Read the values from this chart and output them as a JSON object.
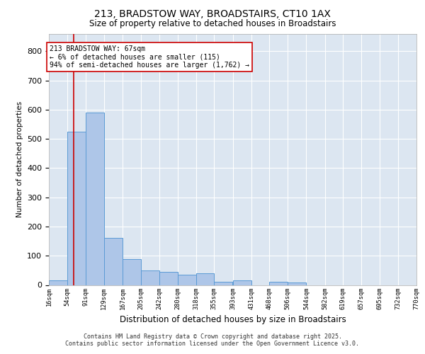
{
  "title_line1": "213, BRADSTOW WAY, BROADSTAIRS, CT10 1AX",
  "title_line2": "Size of property relative to detached houses in Broadstairs",
  "xlabel": "Distribution of detached houses by size in Broadstairs",
  "ylabel": "Number of detached properties",
  "footer_line1": "Contains HM Land Registry data © Crown copyright and database right 2025.",
  "footer_line2": "Contains public sector information licensed under the Open Government Licence v3.0.",
  "annotation_line1": "213 BRADSTOW WAY: 67sqm",
  "annotation_line2": "← 6% of detached houses are smaller (115)",
  "annotation_line3": "94% of semi-detached houses are larger (1,762) →",
  "bar_color": "#aec6e8",
  "bar_edge_color": "#5b9bd5",
  "fig_background": "#ffffff",
  "plot_background": "#dce6f1",
  "grid_color": "#ffffff",
  "ref_line_color": "#cc0000",
  "ref_line_x": 67,
  "bins": [
    16,
    54,
    91,
    129,
    167,
    205,
    242,
    280,
    318,
    355,
    393,
    431,
    468,
    506,
    544,
    582,
    619,
    657,
    695,
    732,
    770
  ],
  "bin_labels": [
    "16sqm",
    "54sqm",
    "91sqm",
    "129sqm",
    "167sqm",
    "205sqm",
    "242sqm",
    "280sqm",
    "318sqm",
    "355sqm",
    "393sqm",
    "431sqm",
    "468sqm",
    "506sqm",
    "544sqm",
    "582sqm",
    "619sqm",
    "657sqm",
    "695sqm",
    "732sqm",
    "770sqm"
  ],
  "bar_heights": [
    15,
    525,
    590,
    160,
    88,
    50,
    45,
    35,
    40,
    10,
    15,
    0,
    12,
    8,
    0,
    0,
    0,
    0,
    0,
    0
  ],
  "ylim": [
    0,
    860
  ],
  "yticks": [
    0,
    100,
    200,
    300,
    400,
    500,
    600,
    700,
    800
  ]
}
